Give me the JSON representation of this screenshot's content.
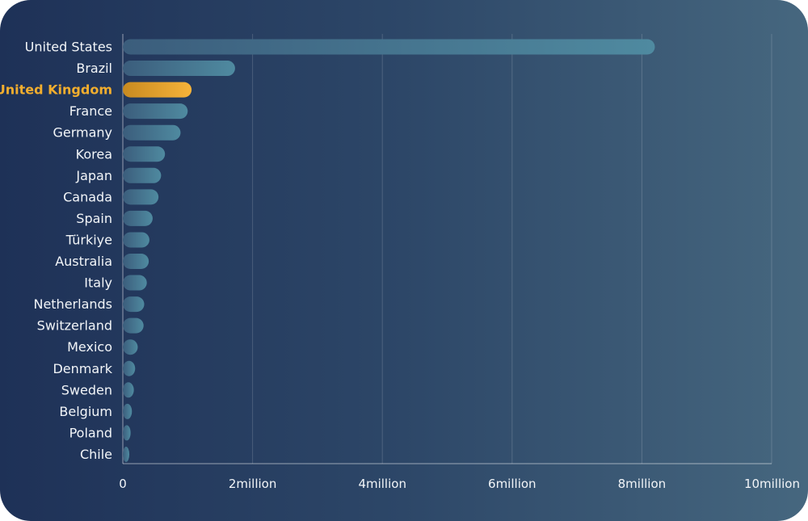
{
  "chart_data": {
    "type": "bar",
    "orientation": "horizontal",
    "categories": [
      "United States",
      "Brazil",
      "United Kingdom",
      "France",
      "Germany",
      "Korea",
      "Japan",
      "Canada",
      "Spain",
      "Türkiye",
      "Australia",
      "Italy",
      "Netherlands",
      "Switzerland",
      "Mexico",
      "Denmark",
      "Sweden",
      "Belgium",
      "Poland",
      "Chile"
    ],
    "values": [
      8200000,
      1730000,
      1060000,
      1000000,
      890000,
      650000,
      590000,
      550000,
      460000,
      410000,
      400000,
      370000,
      330000,
      320000,
      230000,
      190000,
      170000,
      140000,
      120000,
      100000
    ],
    "highlight": "United Kingdom",
    "xlim": [
      0,
      10000000
    ],
    "xticks": [
      0,
      2000000,
      4000000,
      6000000,
      8000000,
      10000000
    ],
    "xtick_labels": [
      "0",
      "2million",
      "4million",
      "6million",
      "8million",
      "10million"
    ],
    "grid": true,
    "colors": {
      "bar_start": "#3b5d7c",
      "bar_end": "#4f8aa0",
      "highlight_start": "#c88a20",
      "highlight_end": "#f6b33a",
      "label": "#f2f5f8",
      "highlight_label": "#f2ae2e"
    }
  }
}
